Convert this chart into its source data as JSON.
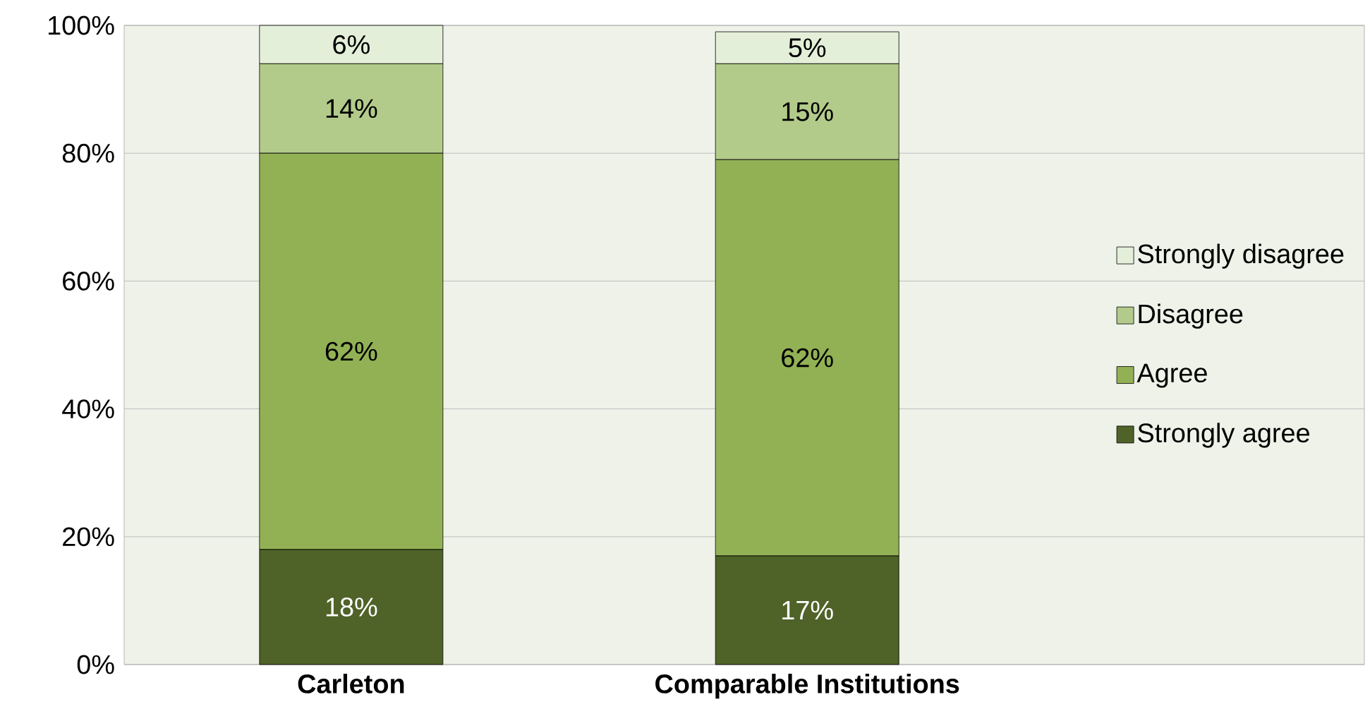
{
  "chart_data": {
    "type": "bar",
    "stacked": true,
    "categories": [
      "Carleton",
      "Comparable Institutions"
    ],
    "series": [
      {
        "name": "Strongly agree",
        "color": "#4f6228",
        "values": [
          18,
          17
        ],
        "value_labels": [
          "18%",
          "17%"
        ]
      },
      {
        "name": "Agree",
        "color": "#92b155",
        "values": [
          62,
          62
        ],
        "value_labels": [
          "62%",
          "62%"
        ]
      },
      {
        "name": "Disagree",
        "color": "#b3cb8a",
        "values": [
          14,
          15
        ],
        "value_labels": [
          "14%",
          "15%"
        ]
      },
      {
        "name": "Strongly disagree",
        "color": "#e4efd9",
        "values": [
          6,
          5
        ],
        "value_labels": [
          "6%",
          "5%"
        ]
      }
    ],
    "ylim": [
      0,
      100
    ],
    "yticks": [
      {
        "value": 0,
        "label": "0%"
      },
      {
        "value": 20,
        "label": "20%"
      },
      {
        "value": 40,
        "label": "40%"
      },
      {
        "value": 60,
        "label": "60%"
      },
      {
        "value": 80,
        "label": "80%"
      },
      {
        "value": 100,
        "label": "100%"
      }
    ],
    "grid": "y",
    "legend": "right"
  }
}
